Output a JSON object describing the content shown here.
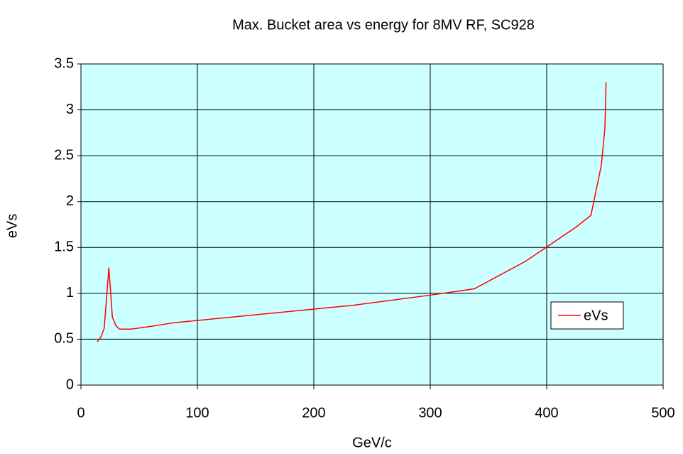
{
  "chart_data": {
    "type": "line",
    "title": "Max. Bucket area vs energy for 8MV RF, SC928",
    "x_label": "GeV/c",
    "y_label": "eVs",
    "x": [
      14,
      17,
      20,
      24,
      27,
      30,
      33,
      43,
      60,
      80,
      234,
      300,
      338,
      382,
      425,
      438,
      447,
      450,
      451
    ],
    "series": [
      {
        "name": "eVs",
        "color": "#ff0000",
        "values": [
          0.47,
          0.52,
          0.62,
          1.28,
          0.74,
          0.65,
          0.61,
          0.61,
          0.64,
          0.68,
          0.87,
          0.98,
          1.05,
          1.35,
          1.72,
          1.85,
          2.4,
          2.8,
          3.3
        ]
      }
    ],
    "xlim": [
      0,
      500
    ],
    "xticks": [
      0,
      100,
      200,
      300,
      400,
      500
    ],
    "ylim": [
      0,
      3.5
    ],
    "yticks": [
      0,
      0.5,
      1,
      1.5,
      2,
      2.5,
      3,
      3.5
    ],
    "grid": true,
    "legend": "right",
    "plot_background": "#ccffff"
  }
}
